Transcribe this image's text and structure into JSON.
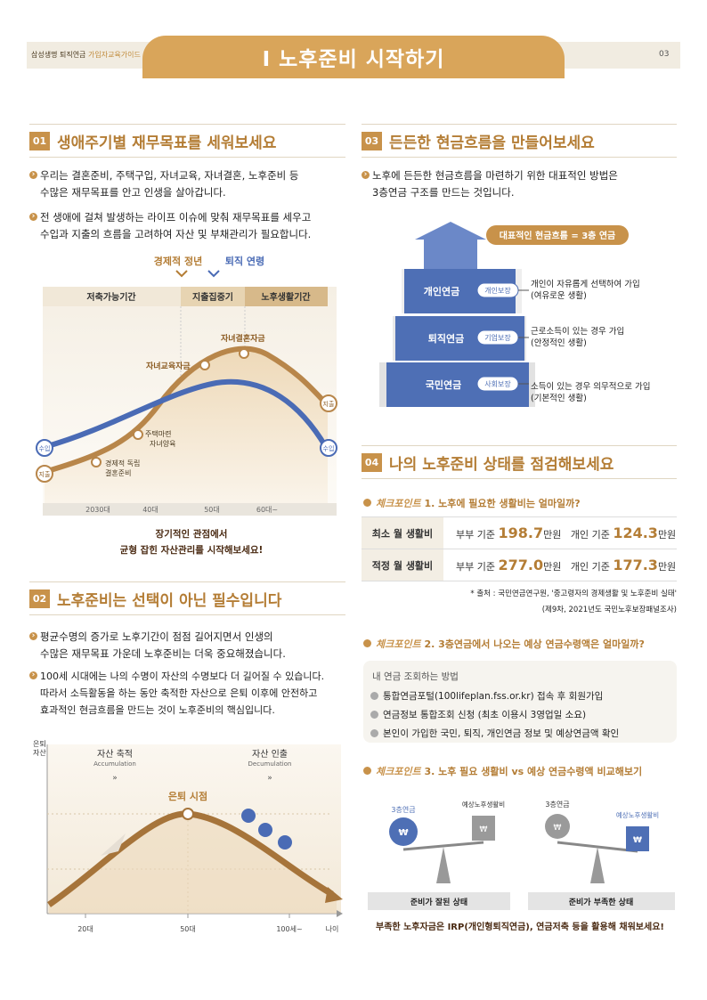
{
  "header": {
    "left_text": "삼성생명 퇴직연금",
    "left_accent": "가입자교육가이드",
    "title": "I  노후준비 시작하기",
    "page": "03"
  },
  "s01": {
    "num": "01",
    "title": "생애주기별 재무목표를 세워보세요",
    "b1": [
      "우리는 결혼준비, 주택구입, 자녀교육, 자녀결혼, 노후준비 등",
      "수많은 재무목표를 안고 인생을 살아갑니다."
    ],
    "b2": [
      "전 생애에 걸쳐 발생하는 라이프 이슈에 맞춰 재무목표를 세우고",
      "수입과 지출의 흐름을 고려하여 자산 및 부채관리가 필요합니다."
    ],
    "chart": {
      "top_label_1": "경제적 정년",
      "top_label_2": "퇴직 연령",
      "periods": [
        "저축가능기간",
        "지출집중기",
        "노후생활기간"
      ],
      "ages": [
        "2030대",
        "40대",
        "50대",
        "60대~"
      ],
      "events": [
        "경제적 독립\n결혼준비",
        "주택마련\n자녀양육",
        "자녀교육자금",
        "자녀결혼자금"
      ],
      "income_label": "수입",
      "expense_label": "지출",
      "income_label_r": "수입",
      "expense_label_r": "지출"
    },
    "caption_1": "장기적인 관점에서",
    "caption_2": "균형 잡힌 자산관리를 시작해보세요!"
  },
  "s02": {
    "num": "02",
    "title": "노후준비는 선택이 아닌 필수입니다",
    "b1": [
      "평균수명의 증가로 노후기간이 점점 길어지면서 인생의",
      "수많은 재무목표 가운데 노후준비는 더욱 중요해졌습니다."
    ],
    "b2": [
      "100세 시대에는 나의 수명이 자산의 수명보다 더 길어질 수 있습니다.",
      "따라서 소득활동을 하는 동안 축적한 자산으로 은퇴 이후에 안전하고",
      "효과적인 현금흐름을 만드는 것이 노후준비의 핵심입니다."
    ],
    "chart": {
      "y_label": "은퇴\n자산",
      "acc_ko": "자산 축적",
      "acc_en": "Accumulation",
      "dec_ko": "자산 인출",
      "dec_en": "Decumulation",
      "retire": "은퇴 시점",
      "x_ticks": [
        "20대",
        "50대",
        "100세~"
      ],
      "x_axis": "나이"
    }
  },
  "s03": {
    "num": "03",
    "title": "든든한 현금흐름을 만들어보세요",
    "b1": [
      "노후에 든든한 현금흐름을 마련하기 위한 대표적인 방법은",
      "3층연금 구조를 만드는 것입니다."
    ],
    "banner": "대표적인 현금흐름 = 3층 연금",
    "tiers": [
      {
        "name": "개인연금",
        "tag": "개인보장",
        "desc1": "개인이 자유롭게 선택하여 가입",
        "desc2": "(여유로운 생활)"
      },
      {
        "name": "퇴직연금",
        "tag": "기업보장",
        "desc1": "근로소득이 있는 경우 가입",
        "desc2": "(안정적인 생활)"
      },
      {
        "name": "국민연금",
        "tag": "사회보장",
        "desc1": "소득이 있는 경우 의무적으로 가입",
        "desc2": "(기본적인 생활)"
      }
    ]
  },
  "s04": {
    "num": "04",
    "title": "나의 노후준비 상태를 점검해보세요",
    "check_label": "체크포인트",
    "q1": "1. 노후에 필요한 생활비는 얼마일까?",
    "table": [
      {
        "head": "최소 월 생활비",
        "p_label": "부부 기준",
        "p_val": "198.7",
        "i_label": "개인 기준",
        "i_val": "124.3",
        "unit": "만원"
      },
      {
        "head": "적정 월 생활비",
        "p_label": "부부 기준",
        "p_val": "277.0",
        "i_label": "개인 기준",
        "i_val": "177.3",
        "unit": "만원"
      }
    ],
    "source1": "* 출처 : 국민연금연구원, '중고령자의 경제생활 및 노후준비 실태'",
    "source2": "(제9차, 2021년도 국민노후보장패널조사)",
    "q2": "2. 3층연금에서 나오는 예상 연금수령액은 얼마일까?",
    "how_title": "내 연금 조회하는 방법",
    "how": [
      "통합연금포털(100lifeplan.fss.or.kr) 접속 후 회원가입",
      "연금정보 통합조회 신청 (최초 이용시 3영업일 소요)",
      "본인이 가입한 국민, 퇴직, 개인연금 정보 및 예상연금액 확인"
    ],
    "q3": "3. 노후 필요 생활비 vs 예상 연금수령액 비교해보기",
    "scale_left": {
      "l1": "3층연금",
      "l2": "예상노후생활비",
      "caption": "준비가 잘된 상태"
    },
    "scale_right": {
      "l1": "3층연금",
      "l2": "예상노후생활비",
      "caption": "준비가 부족한 상태"
    },
    "bottom": "부족한 노후자금은 IRP(개인형퇴직연금), 연금저축 등을 활용해 채워보세요!"
  },
  "colors": {
    "gold": "#c8924a",
    "blue": "#4a6bb5",
    "tan": "#e8d7ba"
  }
}
